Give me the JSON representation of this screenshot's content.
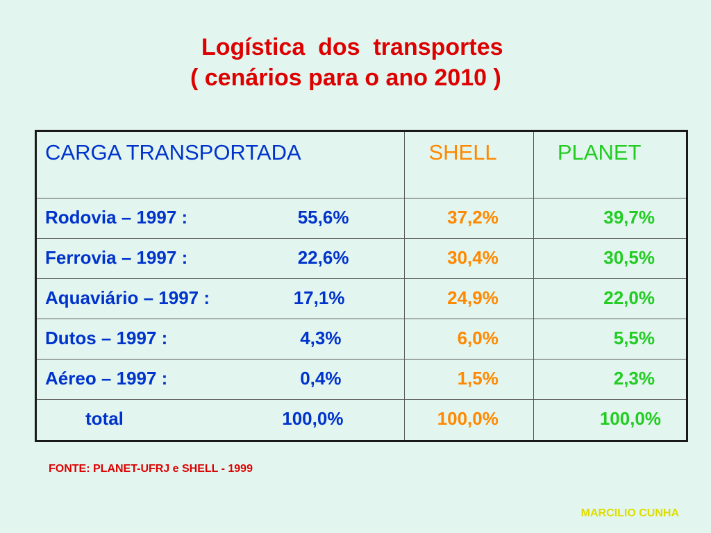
{
  "title": {
    "line1": "Logística  dos  transportes",
    "line2": "( cenários para o ano 2010 )"
  },
  "table": {
    "headers": {
      "carga": "CARGA  TRANSPORTADA",
      "shell": "SHELL",
      "planet": "PLANET"
    },
    "rows": [
      {
        "mode": "Rodovia – 1997 :",
        "base": "55,6%",
        "shell": "37,2%",
        "planet": "39,7%"
      },
      {
        "mode": "Ferrovia – 1997 :",
        "base": "22,6%",
        "shell": "30,4%",
        "planet": "30,5%"
      },
      {
        "mode": "Aquaviário – 1997 :",
        "base": "17,1%",
        "shell": "24,9%",
        "planet": "22,0%"
      },
      {
        "mode": "Dutos – 1997 :",
        "base": "4,3%",
        "shell": "6,0%",
        "planet": "5,5%"
      },
      {
        "mode": "Aéreo – 1997 :",
        "base": "0,4%",
        "shell": "1,5%",
        "planet": "2,3%"
      },
      {
        "mode": "total",
        "base": "100,0%",
        "shell": "100,0%",
        "planet": "100,0%"
      }
    ]
  },
  "source": "FONTE: PLANET-UFRJ e SHELL - 1999",
  "author": "MARCILIO CUNHA",
  "colors": {
    "background": "#e2f6ef",
    "title": "#dd0000",
    "carga_text": "#0033cc",
    "shell": "#ff8800",
    "planet": "#22cc22",
    "author": "#dddd00"
  }
}
